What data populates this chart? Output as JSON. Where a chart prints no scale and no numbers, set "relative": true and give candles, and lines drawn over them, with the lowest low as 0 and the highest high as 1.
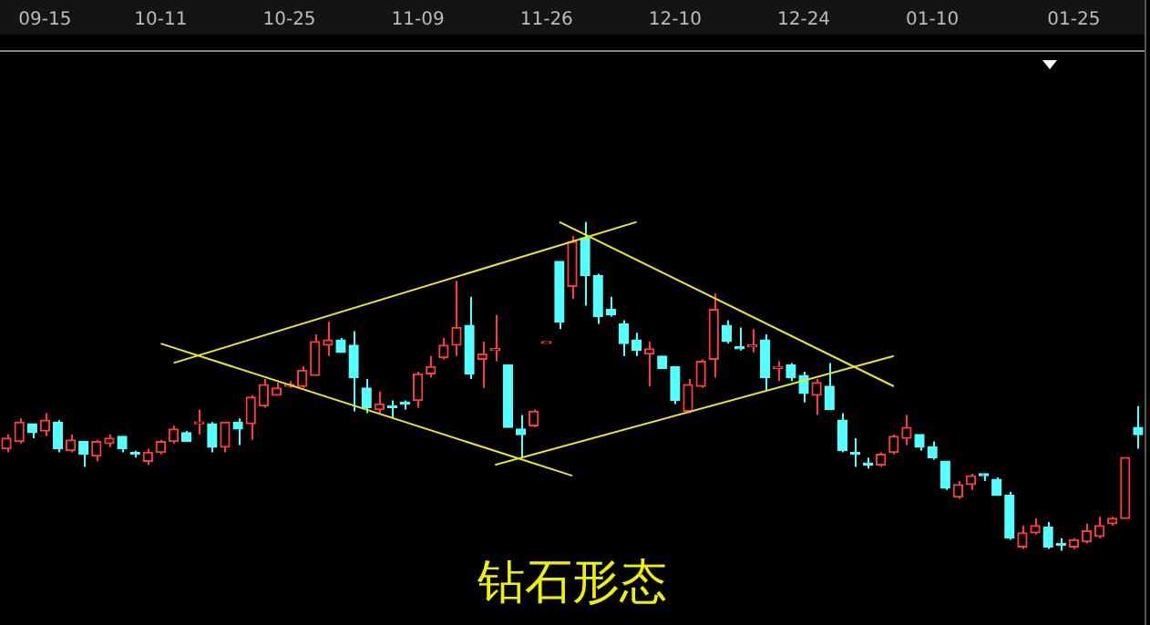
{
  "chart_data": {
    "type": "candlestick",
    "title": "钻石形态",
    "relative": true,
    "categories": [
      null,
      null,
      null,
      "09-15",
      null,
      null,
      null,
      null,
      null,
      null,
      null,
      null,
      "10-11",
      null,
      null,
      null,
      null,
      null,
      null,
      null,
      null,
      null,
      "10-25",
      null,
      null,
      null,
      null,
      null,
      null,
      null,
      null,
      null,
      "11-09",
      null,
      null,
      null,
      null,
      null,
      null,
      null,
      null,
      null,
      "11-26",
      null,
      null,
      null,
      null,
      null,
      null,
      null,
      null,
      null,
      "12-10",
      null,
      null,
      null,
      null,
      null,
      null,
      null,
      null,
      null,
      "12-24",
      null,
      null,
      null,
      null,
      null,
      null,
      null,
      null,
      null,
      "01-10",
      null,
      null,
      null,
      null,
      null,
      null,
      null,
      null,
      null,
      null,
      "01-25",
      null,
      null,
      null,
      null,
      null
    ],
    "ohlc": [
      [
        0.31,
        0.353,
        0.299,
        0.342
      ],
      [
        0.332,
        0.402,
        0.326,
        0.391
      ],
      [
        0.386,
        0.386,
        0.342,
        0.359
      ],
      [
        0.364,
        0.418,
        0.348,
        0.397
      ],
      [
        0.391,
        0.397,
        0.299,
        0.31
      ],
      [
        0.304,
        0.353,
        0.299,
        0.337
      ],
      [
        0.332,
        0.332,
        0.255,
        0.293
      ],
      [
        0.288,
        0.337,
        0.272,
        0.332
      ],
      [
        0.326,
        0.353,
        0.315,
        0.342
      ],
      [
        0.348,
        0.348,
        0.299,
        0.31
      ],
      [
        0.299,
        0.304,
        0.283,
        0.293
      ],
      [
        0.272,
        0.31,
        0.261,
        0.299
      ],
      [
        0.299,
        0.337,
        0.293,
        0.332
      ],
      [
        0.332,
        0.38,
        0.326,
        0.37
      ],
      [
        0.359,
        0.364,
        0.332,
        0.332
      ],
      [
        0.386,
        0.429,
        0.353,
        0.391
      ],
      [
        0.386,
        0.391,
        0.299,
        0.315
      ],
      [
        0.315,
        0.391,
        0.299,
        0.391
      ],
      [
        0.391,
        0.402,
        0.321,
        0.37
      ],
      [
        0.386,
        0.473,
        0.337,
        0.467
      ],
      [
        0.44,
        0.522,
        0.435,
        0.505
      ],
      [
        0.473,
        0.511,
        0.473,
        0.495
      ],
      [
        0.5,
        0.516,
        0.495,
        0.505
      ],
      [
        0.5,
        0.56,
        0.495,
        0.549
      ],
      [
        0.533,
        0.658,
        0.533,
        0.636
      ],
      [
        0.625,
        0.696,
        0.592,
        0.641
      ],
      [
        0.641,
        0.647,
        0.603,
        0.603
      ],
      [
        0.625,
        0.668,
        0.424,
        0.527
      ],
      [
        0.495,
        0.522,
        0.418,
        0.435
      ],
      [
        0.429,
        0.484,
        0.418,
        0.446
      ],
      [
        0.44,
        0.457,
        0.402,
        0.435
      ],
      [
        0.451,
        0.457,
        0.429,
        0.446
      ],
      [
        0.457,
        0.544,
        0.435,
        0.538
      ],
      [
        0.538,
        0.592,
        0.527,
        0.56
      ],
      [
        0.587,
        0.647,
        0.582,
        0.625
      ],
      [
        0.625,
        0.821,
        0.592,
        0.679
      ],
      [
        0.685,
        0.772,
        0.522,
        0.538
      ],
      [
        0.582,
        0.636,
        0.495,
        0.598
      ],
      [
        0.609,
        0.717,
        0.576,
        0.614
      ],
      [
        0.565,
        0.565,
        0.375,
        0.375
      ],
      [
        0.37,
        0.413,
        0.283,
        0.353
      ],
      [
        0.38,
        0.429,
        0.375,
        0.424
      ],
      [
        0.636,
        0.636,
        0.636,
        0.636
      ],
      [
        0.88,
        0.88,
        0.674,
        0.696
      ],
      [
        0.804,
        0.957,
        0.766,
        0.94
      ],
      [
        0.951,
        1,
        0.745,
        0.837
      ],
      [
        0.837,
        0.842,
        0.69,
        0.712
      ],
      [
        0.734,
        0.772,
        0.712,
        0.717
      ],
      [
        0.69,
        0.701,
        0.592,
        0.63
      ],
      [
        0.641,
        0.663,
        0.592,
        0.609
      ],
      [
        0.598,
        0.636,
        0.5,
        0.614
      ],
      [
        0.592,
        0.592,
        0.554,
        0.554
      ],
      [
        0.56,
        0.56,
        0.446,
        0.457
      ],
      [
        0.424,
        0.522,
        0.418,
        0.505
      ],
      [
        0.5,
        0.582,
        0.495,
        0.576
      ],
      [
        0.582,
        0.783,
        0.527,
        0.734
      ],
      [
        0.685,
        0.701,
        0.63,
        0.636
      ],
      [
        0.62,
        0.679,
        0.609,
        0.614
      ],
      [
        0.62,
        0.674,
        0.603,
        0.625
      ],
      [
        0.641,
        0.658,
        0.489,
        0.527
      ],
      [
        0.554,
        0.576,
        0.516,
        0.56
      ],
      [
        0.565,
        0.571,
        0.516,
        0.527
      ],
      [
        0.533,
        0.544,
        0.451,
        0.478
      ],
      [
        0.473,
        0.522,
        0.413,
        0.511
      ],
      [
        0.5,
        0.571,
        0.429,
        0.429
      ],
      [
        0.397,
        0.418,
        0.299,
        0.304
      ],
      [
        0.299,
        0.342,
        0.255,
        0.293
      ],
      [
        0.266,
        0.283,
        0.25,
        0.261
      ],
      [
        0.261,
        0.299,
        0.255,
        0.293
      ],
      [
        0.299,
        0.353,
        0.293,
        0.348
      ],
      [
        0.342,
        0.413,
        0.321,
        0.375
      ],
      [
        0.353,
        0.353,
        0.304,
        0.315
      ],
      [
        0.315,
        0.332,
        0.277,
        0.283
      ],
      [
        0.272,
        0.272,
        0.185,
        0.19
      ],
      [
        0.163,
        0.212,
        0.158,
        0.201
      ],
      [
        0.201,
        0.234,
        0.185,
        0.228
      ],
      [
        0.234,
        0.234,
        0.212,
        0.228
      ],
      [
        0.217,
        0.223,
        0.168,
        0.168
      ],
      [
        0.168,
        0.179,
        0.033,
        0.038
      ],
      [
        0.011,
        0.076,
        0.005,
        0.054
      ],
      [
        0.054,
        0.098,
        0.049,
        0.076
      ],
      [
        0.071,
        0.087,
        0.005,
        0.011
      ],
      [
        0.022,
        0.038,
        0,
        0.016
      ],
      [
        0.011,
        0.038,
        0.005,
        0.033
      ],
      [
        0.027,
        0.082,
        0.022,
        0.06
      ],
      [
        0.043,
        0.103,
        0.038,
        0.076
      ],
      [
        0.082,
        0.103,
        0.076,
        0.098
      ],
      [
        0.098,
        0.283,
        0.098,
        0.283
      ],
      [
        0.375,
        0.44,
        0.31,
        0.353
      ]
    ],
    "colors": [
      "#ff3c3c",
      "#ff3c3c",
      "#54ffff",
      "#ff3c3c",
      "#54ffff",
      "#ff3c3c",
      "#54ffff",
      "#ff3c3c",
      "#ff3c3c",
      "#54ffff",
      "#54ffff",
      "#ff3c3c",
      "#ff3c3c",
      "#ff3c3c",
      "#54ffff",
      "#ff3c3c",
      "#54ffff",
      "#ff3c3c",
      "#54ffff",
      "#ff3c3c",
      "#ff3c3c",
      "#ff3c3c",
      "#ff3c3c",
      "#ff3c3c",
      "#ff3c3c",
      "#ff3c3c",
      "#54ffff",
      "#54ffff",
      "#54ffff",
      "#ff3c3c",
      "#54ffff",
      "#54ffff",
      "#ff3c3c",
      "#ff3c3c",
      "#ff3c3c",
      "#ff3c3c",
      "#54ffff",
      "#ff3c3c",
      "#ff3c3c",
      "#54ffff",
      "#54ffff",
      "#ff3c3c",
      "#ff3c3c",
      "#54ffff",
      "#ff3c3c",
      "#54ffff",
      "#54ffff",
      "#54ffff",
      "#54ffff",
      "#54ffff",
      "#ff3c3c",
      "#54ffff",
      "#54ffff",
      "#ff3c3c",
      "#ff3c3c",
      "#ff3c3c",
      "#54ffff",
      "#54ffff",
      "#ff3c3c",
      "#54ffff",
      "#ff3c3c",
      "#54ffff",
      "#54ffff",
      "#ff3c3c",
      "#54ffff",
      "#54ffff",
      "#54ffff",
      "#54ffff",
      "#ff3c3c",
      "#ff3c3c",
      "#ff3c3c",
      "#54ffff",
      "#54ffff",
      "#54ffff",
      "#ff3c3c",
      "#ff3c3c",
      "#54ffff",
      "#54ffff",
      "#54ffff",
      "#ff3c3c",
      "#ff3c3c",
      "#54ffff",
      "#54ffff",
      "#ff3c3c",
      "#ff3c3c",
      "#ff3c3c",
      "#ff3c3c",
      "#ff3c3c",
      "#54ffff"
    ],
    "series": [
      {
        "type": "line",
        "color": "#e8e82a",
        "values": [
          null,
          null,
          null,
          null,
          null,
          null,
          null,
          null,
          null,
          null,
          null,
          null,
          null,
          0.571,
          null,
          null,
          null,
          null,
          null,
          null,
          null,
          null,
          null,
          null,
          null,
          null,
          null,
          null,
          null,
          null,
          null,
          null,
          null,
          null,
          null,
          null,
          null,
          null,
          null,
          null,
          null,
          null,
          null,
          null,
          null,
          null,
          null,
          null,
          null,
          1,
          null,
          null,
          null,
          null,
          null,
          null,
          null,
          null,
          null,
          null,
          null,
          null,
          null,
          null,
          null,
          null,
          null,
          null,
          null,
          null,
          null,
          null,
          null,
          null,
          null,
          null,
          null,
          null,
          null,
          null,
          null,
          null,
          null,
          null,
          null,
          null,
          null,
          null,
          null
        ]
      },
      {
        "type": "line",
        "color": "#e8e82a",
        "values": [
          null,
          null,
          null,
          null,
          null,
          null,
          null,
          null,
          null,
          null,
          null,
          null,
          0.63,
          null,
          null,
          null,
          null,
          null,
          null,
          null,
          null,
          null,
          null,
          null,
          null,
          null,
          null,
          null,
          null,
          null,
          null,
          null,
          null,
          null,
          null,
          null,
          null,
          null,
          null,
          null,
          null,
          null,
          null,
          null,
          0.228,
          null,
          null,
          null,
          null,
          null,
          null,
          null,
          null,
          null,
          null,
          null,
          null,
          null,
          null,
          null,
          null,
          null,
          null,
          null,
          null,
          null,
          null,
          null,
          null,
          null,
          null,
          null,
          null,
          null,
          null,
          null,
          null,
          null,
          null,
          null,
          null,
          null,
          null,
          null,
          null,
          null,
          null,
          null,
          null
        ]
      },
      {
        "type": "line",
        "color": "#e8e82a",
        "values": [
          null,
          null,
          null,
          null,
          null,
          null,
          null,
          null,
          null,
          null,
          null,
          null,
          null,
          null,
          null,
          null,
          null,
          null,
          null,
          null,
          null,
          null,
          null,
          null,
          null,
          null,
          null,
          null,
          null,
          null,
          null,
          null,
          null,
          null,
          null,
          null,
          null,
          null,
          null,
          null,
          null,
          null,
          null,
          1,
          null,
          null,
          null,
          null,
          null,
          null,
          null,
          null,
          null,
          null,
          null,
          null,
          null,
          null,
          null,
          null,
          null,
          null,
          null,
          null,
          null,
          null,
          null,
          null,
          null,
          0.5,
          null,
          null,
          null,
          null,
          null,
          null,
          null,
          null,
          null,
          null,
          null,
          null,
          null,
          null,
          null,
          null,
          null,
          null,
          null
        ]
      },
      {
        "type": "line",
        "color": "#e8e82a",
        "values": [
          null,
          null,
          null,
          null,
          null,
          null,
          null,
          null,
          null,
          null,
          null,
          null,
          null,
          null,
          null,
          null,
          null,
          null,
          null,
          null,
          null,
          null,
          null,
          null,
          null,
          null,
          null,
          null,
          null,
          null,
          null,
          null,
          null,
          null,
          null,
          null,
          null,
          null,
          0.261,
          null,
          null,
          null,
          null,
          null,
          null,
          null,
          null,
          null,
          null,
          null,
          null,
          null,
          null,
          null,
          null,
          null,
          null,
          null,
          null,
          null,
          null,
          null,
          null,
          null,
          null,
          null,
          null,
          null,
          null,
          0.592,
          null,
          null,
          null,
          null,
          null,
          null,
          null,
          null,
          null,
          null,
          null,
          null,
          null,
          null,
          null,
          null,
          null,
          null,
          null
        ]
      }
    ]
  }
}
